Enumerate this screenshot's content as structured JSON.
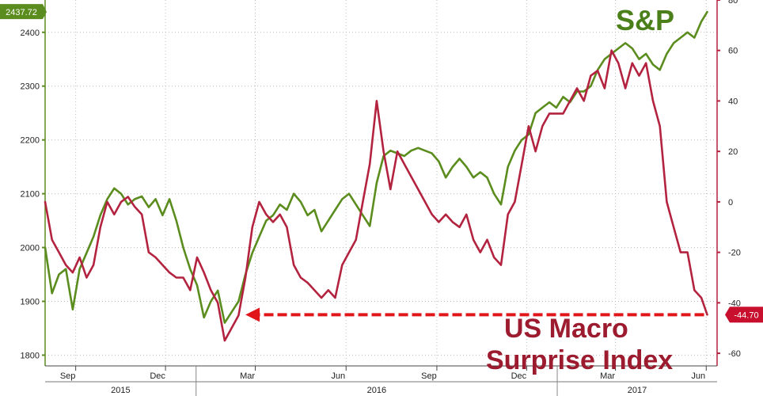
{
  "chart_data": {
    "type": "line",
    "title": "",
    "xlabel": "",
    "ylabel": "",
    "grid": true,
    "x_ticks_month": [
      "Sep",
      "Dec",
      "Mar",
      "Jun",
      "Sep",
      "Dec",
      "Mar",
      "Jun"
    ],
    "x_ticks_year": [
      "2015",
      "2016",
      "2017"
    ],
    "left_axis": {
      "ylim": [
        1780,
        2460
      ],
      "ticks": [
        "1800",
        "1900",
        "2000",
        "2100",
        "2200",
        "2300",
        "2400"
      ]
    },
    "right_axis": {
      "ylim": [
        -65,
        80
      ],
      "ticks": [
        "-60",
        "-40",
        "-20",
        "0",
        "20",
        "40",
        "60",
        "80"
      ]
    },
    "series": [
      {
        "name": "S&P",
        "axis": "left",
        "color": "#5b8c1e",
        "last_value_label": "2437.72",
        "x": [
          "2015-08-01",
          "2015-08-08",
          "2015-08-15",
          "2015-08-22",
          "2015-08-29",
          "2015-09-05",
          "2015-09-12",
          "2015-09-19",
          "2015-09-26",
          "2015-10-03",
          "2015-10-10",
          "2015-10-17",
          "2015-10-24",
          "2015-10-31",
          "2015-11-07",
          "2015-11-14",
          "2015-11-21",
          "2015-11-28",
          "2015-12-05",
          "2015-12-12",
          "2015-12-19",
          "2015-12-26",
          "2016-01-02",
          "2016-01-09",
          "2016-01-16",
          "2016-01-23",
          "2016-01-30",
          "2016-02-06",
          "2016-02-13",
          "2016-02-20",
          "2016-02-27",
          "2016-03-05",
          "2016-03-12",
          "2016-03-19",
          "2016-03-26",
          "2016-04-02",
          "2016-04-09",
          "2016-04-16",
          "2016-04-23",
          "2016-04-30",
          "2016-05-07",
          "2016-05-14",
          "2016-05-21",
          "2016-05-28",
          "2016-06-04",
          "2016-06-11",
          "2016-06-18",
          "2016-06-25",
          "2016-07-02",
          "2016-07-09",
          "2016-07-16",
          "2016-07-23",
          "2016-07-30",
          "2016-08-06",
          "2016-08-13",
          "2016-08-20",
          "2016-08-27",
          "2016-09-03",
          "2016-09-10",
          "2016-09-17",
          "2016-09-24",
          "2016-10-01",
          "2016-10-08",
          "2016-10-15",
          "2016-10-22",
          "2016-10-29",
          "2016-11-05",
          "2016-11-12",
          "2016-11-19",
          "2016-11-26",
          "2016-12-03",
          "2016-12-10",
          "2016-12-17",
          "2016-12-24",
          "2016-12-31",
          "2017-01-07",
          "2017-01-14",
          "2017-01-21",
          "2017-01-28",
          "2017-02-04",
          "2017-02-11",
          "2017-02-18",
          "2017-02-25",
          "2017-03-04",
          "2017-03-11",
          "2017-03-18",
          "2017-03-25",
          "2017-04-01",
          "2017-04-08",
          "2017-04-15",
          "2017-04-22",
          "2017-04-29",
          "2017-05-06",
          "2017-05-13",
          "2017-05-20",
          "2017-05-27",
          "2017-06-02"
        ],
        "values": [
          2000,
          1915,
          1950,
          1960,
          1885,
          1960,
          1990,
          2020,
          2060,
          2090,
          2110,
          2100,
          2080,
          2090,
          2095,
          2075,
          2090,
          2060,
          2090,
          2050,
          2000,
          1960,
          1930,
          1870,
          1900,
          1920,
          1860,
          1880,
          1900,
          1950,
          1990,
          2020,
          2050,
          2060,
          2080,
          2070,
          2100,
          2085,
          2060,
          2070,
          2030,
          2050,
          2070,
          2090,
          2100,
          2080,
          2060,
          2040,
          2120,
          2170,
          2180,
          2175,
          2170,
          2180,
          2185,
          2180,
          2175,
          2160,
          2130,
          2150,
          2165,
          2150,
          2130,
          2140,
          2130,
          2100,
          2080,
          2150,
          2180,
          2200,
          2210,
          2250,
          2260,
          2270,
          2260,
          2280,
          2270,
          2290,
          2290,
          2300,
          2330,
          2350,
          2360,
          2370,
          2380,
          2370,
          2350,
          2360,
          2340,
          2330,
          2360,
          2380,
          2390,
          2400,
          2390,
          2420,
          2437.72
        ]
      },
      {
        "name": "US Macro Surprise Index",
        "axis": "right",
        "color": "#b3233f",
        "last_value_label": "-44.70",
        "x": [
          "2015-08-01",
          "2015-08-08",
          "2015-08-15",
          "2015-08-22",
          "2015-08-29",
          "2015-09-05",
          "2015-09-12",
          "2015-09-19",
          "2015-09-26",
          "2015-10-03",
          "2015-10-10",
          "2015-10-17",
          "2015-10-24",
          "2015-10-31",
          "2015-11-07",
          "2015-11-14",
          "2015-11-21",
          "2015-11-28",
          "2015-12-05",
          "2015-12-12",
          "2015-12-19",
          "2015-12-26",
          "2016-01-02",
          "2016-01-09",
          "2016-01-16",
          "2016-01-23",
          "2016-01-30",
          "2016-02-06",
          "2016-02-13",
          "2016-02-20",
          "2016-02-27",
          "2016-03-05",
          "2016-03-12",
          "2016-03-19",
          "2016-03-26",
          "2016-04-02",
          "2016-04-09",
          "2016-04-16",
          "2016-04-23",
          "2016-04-30",
          "2016-05-07",
          "2016-05-14",
          "2016-05-21",
          "2016-05-28",
          "2016-06-04",
          "2016-06-11",
          "2016-06-18",
          "2016-06-25",
          "2016-07-02",
          "2016-07-09",
          "2016-07-16",
          "2016-07-23",
          "2016-07-30",
          "2016-08-06",
          "2016-08-13",
          "2016-08-20",
          "2016-08-27",
          "2016-09-03",
          "2016-09-10",
          "2016-09-17",
          "2016-09-24",
          "2016-10-01",
          "2016-10-08",
          "2016-10-15",
          "2016-10-22",
          "2016-10-29",
          "2016-11-05",
          "2016-11-12",
          "2016-11-19",
          "2016-11-26",
          "2016-12-03",
          "2016-12-10",
          "2016-12-17",
          "2016-12-24",
          "2016-12-31",
          "2017-01-07",
          "2017-01-14",
          "2017-01-21",
          "2017-01-28",
          "2017-02-04",
          "2017-02-11",
          "2017-02-18",
          "2017-02-25",
          "2017-03-04",
          "2017-03-11",
          "2017-03-18",
          "2017-03-25",
          "2017-04-01",
          "2017-04-08",
          "2017-04-15",
          "2017-04-22",
          "2017-04-29",
          "2017-05-06",
          "2017-05-13",
          "2017-05-20",
          "2017-05-27",
          "2017-06-02"
        ],
        "values": [
          0,
          -15,
          -20,
          -25,
          -28,
          -22,
          -30,
          -25,
          -10,
          0,
          -5,
          0,
          2,
          -2,
          -5,
          -20,
          -22,
          -25,
          -28,
          -30,
          -30,
          -35,
          -22,
          -28,
          -35,
          -40,
          -55,
          -50,
          -45,
          -30,
          -10,
          0,
          -5,
          -8,
          -5,
          -10,
          -25,
          -30,
          -32,
          -35,
          -38,
          -35,
          -38,
          -25,
          -20,
          -15,
          0,
          15,
          40,
          20,
          5,
          20,
          15,
          10,
          5,
          0,
          -5,
          -8,
          -5,
          -8,
          -10,
          -5,
          -15,
          -20,
          -15,
          -22,
          -25,
          -5,
          0,
          15,
          30,
          20,
          30,
          35,
          35,
          35,
          40,
          45,
          40,
          50,
          52,
          45,
          60,
          55,
          45,
          55,
          50,
          55,
          40,
          30,
          0,
          -10,
          -20,
          -20,
          -35,
          -38,
          -44.7
        ]
      }
    ],
    "annotations": [
      "S&P",
      "US Macro",
      "Surprise Index"
    ]
  }
}
